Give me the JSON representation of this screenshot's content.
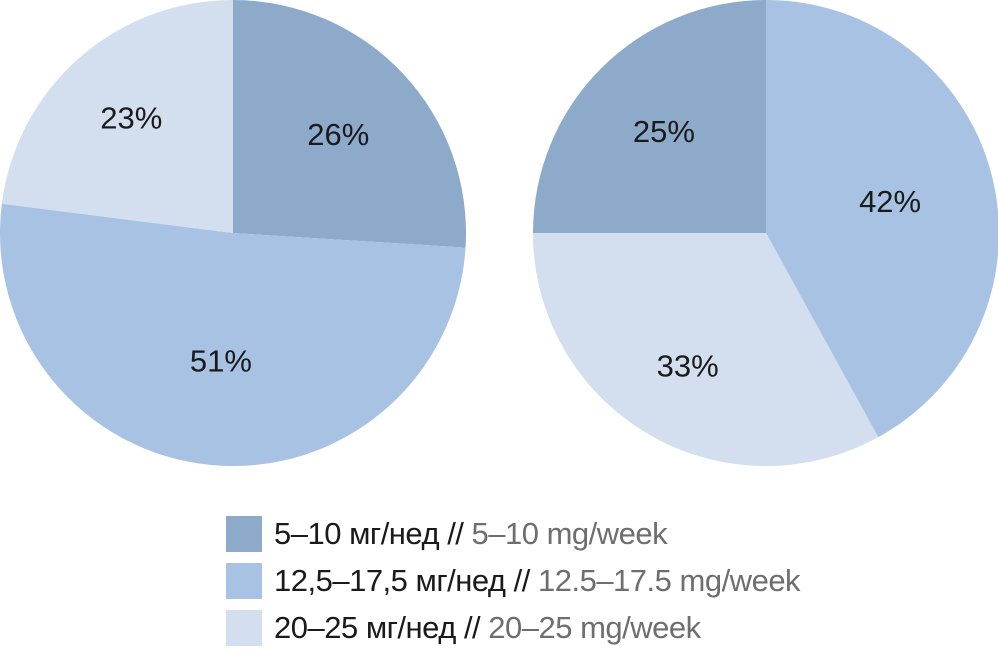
{
  "chart_data": {
    "type": "pie",
    "categories": [
      "5–10 мг/нед // 5–10 mg/week",
      "12,5–17,5 мг/нед // 12.5–17.5 mg/week",
      "20–25 мг/нед // 20–25 mg/week"
    ],
    "colors": [
      "#8eaacb",
      "#a8c2e3",
      "#d3deee"
    ],
    "pies": [
      {
        "values": [
          26,
          51,
          23
        ],
        "labels": [
          "26%",
          "51%",
          "23%"
        ]
      },
      {
        "values": [
          25,
          42,
          33
        ],
        "labels": [
          "25%",
          "42%",
          "33%"
        ]
      }
    ],
    "legend": {
      "placement": "bottom",
      "separator": " // ",
      "items": [
        {
          "ru": "5–10 мг/нед",
          "en": "5–10 mg/week",
          "color": "#8eaacb"
        },
        {
          "ru": "12,5–17,5 мг/нед",
          "en": "12.5–17.5 mg/week",
          "color": "#a8c2e3"
        },
        {
          "ru": "20–25 мг/нед",
          "en": "20–25 mg/week",
          "color": "#d3deee"
        }
      ]
    }
  }
}
